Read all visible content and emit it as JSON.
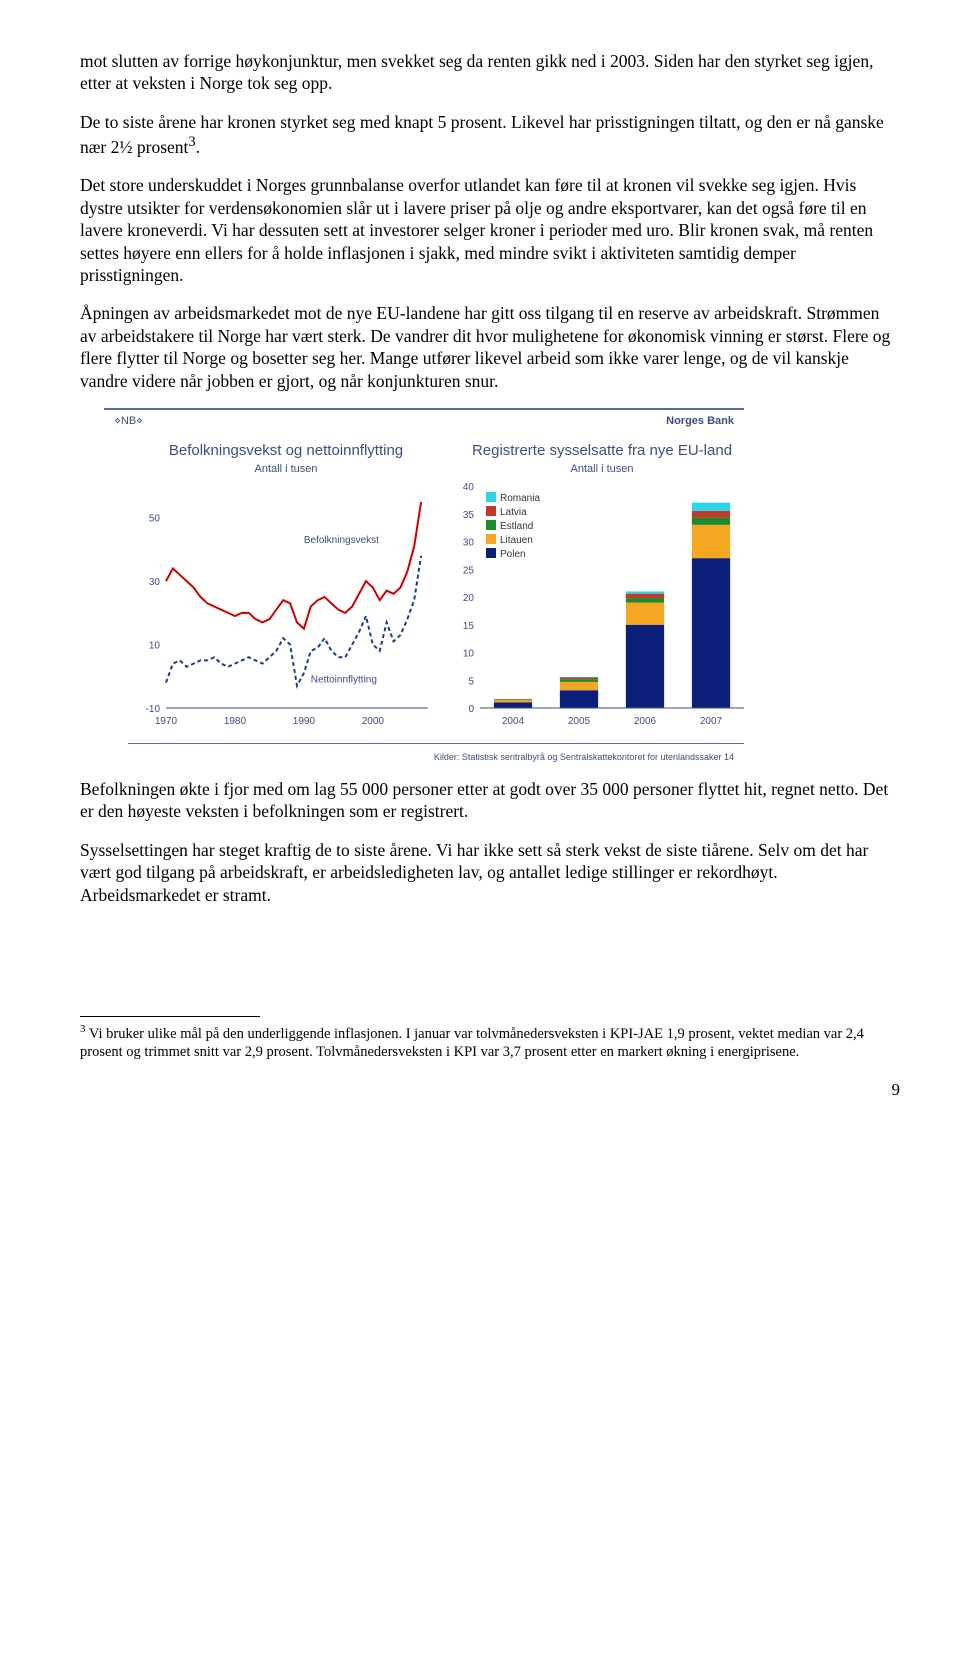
{
  "paragraphs": {
    "p1": "mot slutten av forrige høykonjunktur, men svekket seg da renten gikk ned i 2003. Siden har den styrket seg igjen, etter at veksten i Norge tok seg opp.",
    "p2_a": "De to siste årene har kronen styrket seg med knapt 5 prosent. Likevel har prisstigningen tiltatt, og den er nå ganske nær 2½ prosent",
    "p2_sup": "3",
    "p2_b": ".",
    "p3": "Det store underskuddet i Norges grunnbalanse overfor utlandet kan føre til at kronen vil svekke seg igjen. Hvis dystre utsikter for verdensøkonomien slår ut i lavere priser på olje og andre eksportvarer, kan det også føre til en lavere kroneverdi. Vi har dessuten sett at investorer selger kroner i perioder med uro. Blir kronen svak, må renten settes høyere enn ellers for å holde inflasjonen i sjakk, med mindre svikt i aktiviteten samtidig demper prisstigningen.",
    "p4": "Åpningen av arbeidsmarkedet mot de nye EU-landene har gitt oss tilgang til en reserve av arbeidskraft. Strømmen av arbeidstakere til Norge har vært sterk. De vandrer dit hvor mulighetene for økonomisk vinning er størst. Flere og flere flytter til Norge og bosetter seg her. Mange utfører likevel arbeid som ikke varer lenge, og de vil kanskje vandre videre når jobben er gjort, og når konjunkturen snur.",
    "p5": "Befolkningen økte i fjor med om lag 55 000 personer etter at godt over 35 000 personer flyttet hit, regnet netto. Det er den høyeste veksten i befolkningen som er registrert.",
    "p6": "Sysselsettingen har steget kraftig de to siste årene. Vi har ikke sett så sterk vekst de siste tiårene. Selv om det har vært god tilgang på arbeidskraft, er arbeidsledigheten lav, og antallet ledige stillinger er rekordhøyt. Arbeidsmarkedet er stramt."
  },
  "brand": {
    "left": "⋄NB⋄",
    "right": "Norges Bank"
  },
  "source_line": "Kilder: Statistisk sentralbyrå og Sentralskattekontoret for utenlandssaker   14",
  "left_chart": {
    "title": "Befolkningsvekst og nettoinnflytting",
    "subtitle": "Antall i tusen",
    "y_ticks": [
      -10,
      10,
      30,
      50
    ],
    "x_ticks": [
      1970,
      1980,
      1990,
      2000
    ],
    "series": {
      "befolkningsvekst": {
        "label": "Befolkningsvekst",
        "color": "#cc0000",
        "points": [
          [
            1970,
            30
          ],
          [
            1971,
            34
          ],
          [
            1972,
            32
          ],
          [
            1973,
            30
          ],
          [
            1974,
            28
          ],
          [
            1975,
            25
          ],
          [
            1976,
            23
          ],
          [
            1977,
            22
          ],
          [
            1978,
            21
          ],
          [
            1979,
            20
          ],
          [
            1980,
            19
          ],
          [
            1981,
            20
          ],
          [
            1982,
            20
          ],
          [
            1983,
            18
          ],
          [
            1984,
            17
          ],
          [
            1985,
            18
          ],
          [
            1986,
            21
          ],
          [
            1987,
            24
          ],
          [
            1988,
            23
          ],
          [
            1989,
            17
          ],
          [
            1990,
            15
          ],
          [
            1991,
            22
          ],
          [
            1992,
            24
          ],
          [
            1993,
            25
          ],
          [
            1994,
            23
          ],
          [
            1995,
            21
          ],
          [
            1996,
            20
          ],
          [
            1997,
            22
          ],
          [
            1998,
            26
          ],
          [
            1999,
            30
          ],
          [
            2000,
            28
          ],
          [
            2001,
            24
          ],
          [
            2002,
            27
          ],
          [
            2003,
            26
          ],
          [
            2004,
            28
          ],
          [
            2005,
            33
          ],
          [
            2006,
            41
          ],
          [
            2007,
            55
          ]
        ]
      },
      "nettoinnflytting": {
        "label": "Nettoinnflytting",
        "color": "#1f3c88",
        "dash": "4,3",
        "points": [
          [
            1970,
            -2
          ],
          [
            1971,
            4
          ],
          [
            1972,
            5
          ],
          [
            1973,
            3
          ],
          [
            1974,
            4
          ],
          [
            1975,
            5
          ],
          [
            1976,
            5
          ],
          [
            1977,
            6
          ],
          [
            1978,
            4
          ],
          [
            1979,
            3
          ],
          [
            1980,
            4
          ],
          [
            1981,
            5
          ],
          [
            1982,
            6
          ],
          [
            1983,
            5
          ],
          [
            1984,
            4
          ],
          [
            1985,
            6
          ],
          [
            1986,
            8
          ],
          [
            1987,
            12
          ],
          [
            1988,
            10
          ],
          [
            1989,
            -3
          ],
          [
            1990,
            1
          ],
          [
            1991,
            8
          ],
          [
            1992,
            9
          ],
          [
            1993,
            12
          ],
          [
            1994,
            8
          ],
          [
            1995,
            6
          ],
          [
            1996,
            6
          ],
          [
            1997,
            10
          ],
          [
            1998,
            14
          ],
          [
            1999,
            19
          ],
          [
            2000,
            10
          ],
          [
            2001,
            8
          ],
          [
            2002,
            17
          ],
          [
            2003,
            11
          ],
          [
            2004,
            13
          ],
          [
            2005,
            18
          ],
          [
            2006,
            24
          ],
          [
            2007,
            38
          ]
        ]
      }
    },
    "y_min": -10,
    "y_max": 60,
    "x_min": 1970,
    "x_max": 2008
  },
  "right_chart": {
    "title": "Registrerte sysselsatte fra nye EU-land",
    "subtitle": "Antall i tusen",
    "y_ticks": [
      0,
      5,
      10,
      15,
      20,
      25,
      30,
      35,
      40
    ],
    "x_labels": [
      "2004",
      "2005",
      "2006",
      "2007"
    ],
    "segments": [
      {
        "name": "Polen",
        "color": "#0b1f7a",
        "values": [
          1.0,
          3.2,
          15.0,
          27.0
        ]
      },
      {
        "name": "Litauen",
        "color": "#f5a623",
        "values": [
          0.4,
          1.5,
          4.0,
          6.0
        ]
      },
      {
        "name": "Estland",
        "color": "#1a8a2a",
        "values": [
          0.1,
          0.5,
          0.8,
          1.3
        ]
      },
      {
        "name": "Latvia",
        "color": "#c0392b",
        "values": [
          0.1,
          0.3,
          0.8,
          1.2
        ]
      },
      {
        "name": "Romania",
        "color": "#2cd5e6",
        "values": [
          0.05,
          0.1,
          0.4,
          1.5
        ]
      }
    ],
    "y_min": 0,
    "y_max": 40
  },
  "footnote": {
    "marker": "3",
    "text": " Vi bruker ulike mål på den underliggende inflasjonen. I januar var tolvmånedersveksten i KPI-JAE 1,9 prosent, vektet median var 2,4 prosent og trimmet snitt var 2,9 prosent. Tolvmånedersveksten i KPI var 3,7 prosent etter en markert økning i energiprisene."
  },
  "page_number": "9"
}
